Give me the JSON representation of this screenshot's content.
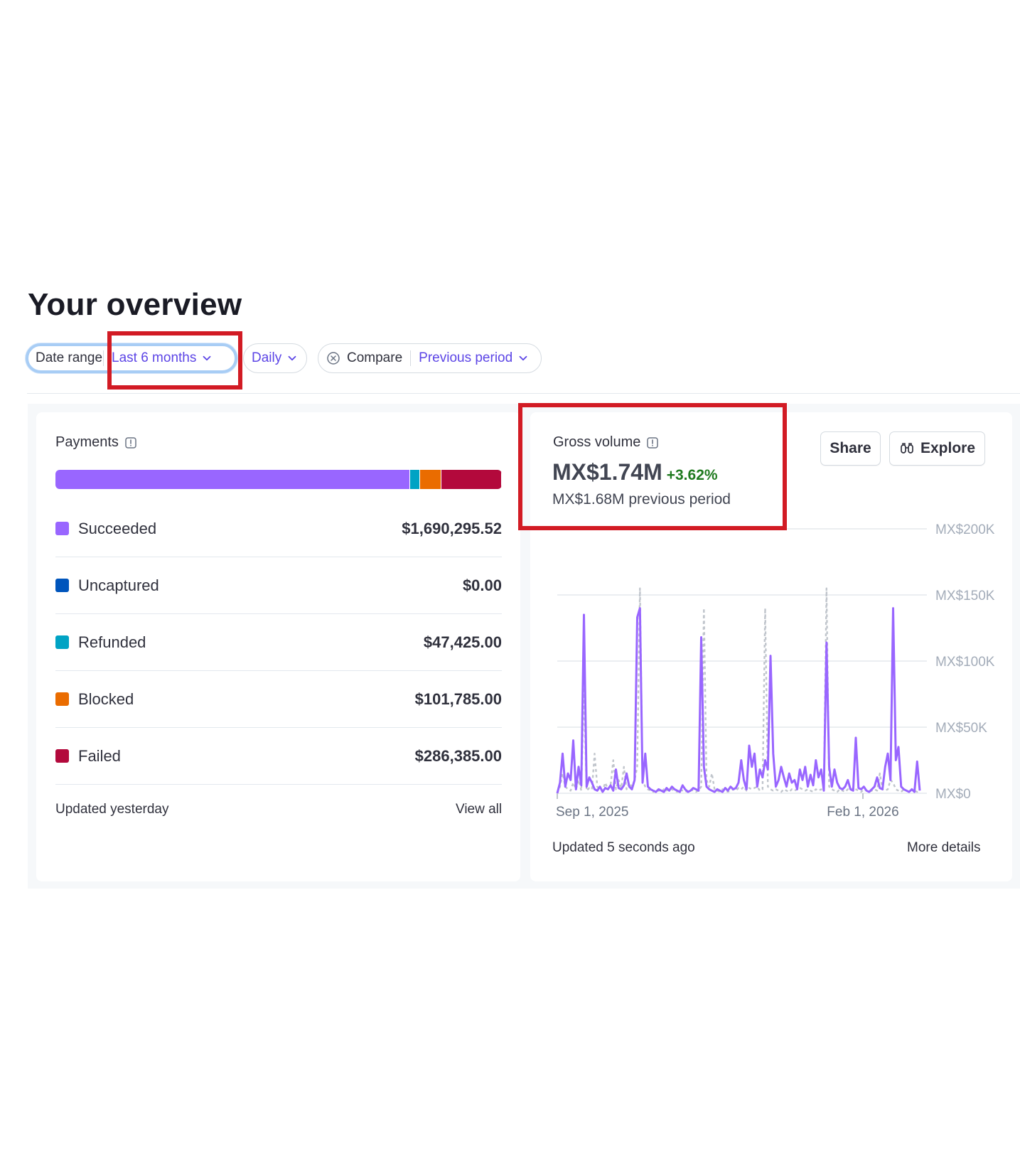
{
  "page": {
    "title": "Your overview"
  },
  "filters": {
    "date_range_label": "Date range",
    "date_range_value": "Last 6 months",
    "interval_value": "Daily",
    "compare_label": "Compare",
    "compare_value": "Previous period"
  },
  "payments": {
    "title": "Payments",
    "items": [
      {
        "label": "Succeeded",
        "value": "$1,690,295.52",
        "color": "#9966ff",
        "amount": 1690295.52
      },
      {
        "label": "Uncaptured",
        "value": "$0.00",
        "color": "#0055bc",
        "amount": 0
      },
      {
        "label": "Refunded",
        "value": "$47,425.00",
        "color": "#00a3c4",
        "amount": 47425
      },
      {
        "label": "Blocked",
        "value": "$101,785.00",
        "color": "#ea6c00",
        "amount": 101785
      },
      {
        "label": "Failed",
        "value": "$286,385.00",
        "color": "#b3093c",
        "amount": 286385
      }
    ],
    "updated": "Updated yesterday",
    "view_all": "View all"
  },
  "gross_volume": {
    "title": "Gross volume",
    "value": "MX$1.74M",
    "change": "+3.62%",
    "previous": "MX$1.68M previous period",
    "share_label": "Share",
    "explore_label": "Explore",
    "updated": "Updated 5 seconds ago",
    "more_details": "More details"
  },
  "colors": {
    "accent": "#5c45e6",
    "positive": "#1f7a1f",
    "highlight": "#d21b24",
    "series_current": "#9966ff",
    "series_previous": "#c0c5cc"
  },
  "chart_data": {
    "type": "line",
    "x_ticks": [
      "Sep 1, 2025",
      "Feb 1, 2026"
    ],
    "y_ticks": [
      "MX$0",
      "MX$50K",
      "MX$100K",
      "MX$150K",
      "MX$200K"
    ],
    "ylim": [
      0,
      200000
    ],
    "series": [
      {
        "values": [
          0,
          8000,
          30000,
          5000,
          15000,
          10000,
          40000,
          3000,
          20000,
          6000,
          135000,
          5000,
          12000,
          8000,
          3000,
          2000,
          5000,
          1000,
          4000,
          3000,
          6000,
          2000,
          18000,
          4000,
          3000,
          6000,
          15000,
          5000,
          3000,
          10000,
          133000,
          140000,
          8000,
          30000,
          5000,
          3000,
          2000,
          1000,
          3000,
          2000,
          1000,
          4000,
          2000,
          5000,
          3000,
          2000,
          1000,
          6000,
          3000,
          1000,
          2000,
          4000,
          3000,
          2000,
          118000,
          20000,
          5000,
          3000,
          2000,
          1000,
          3000,
          2000,
          1000,
          4000,
          2000,
          5000,
          3000,
          4000,
          8000,
          25000,
          10000,
          3000,
          36000,
          20000,
          30000,
          5000,
          18000,
          12000,
          25000,
          18000,
          104000,
          30000,
          5000,
          10000,
          20000,
          12000,
          5000,
          15000,
          8000,
          10000,
          3000,
          18000,
          10000,
          20000,
          5000,
          14000,
          6000,
          25000,
          12000,
          18000,
          2000,
          114000,
          20000,
          5000,
          18000,
          8000,
          4000,
          3000,
          5000,
          10000,
          3000,
          2000,
          42000,
          4000,
          3000,
          5000,
          2000,
          1000,
          3000,
          5000,
          12000,
          4000,
          3000,
          20000,
          30000,
          10000,
          140000,
          25000,
          35000,
          5000,
          3000,
          2000,
          1000,
          3000,
          1000,
          24000,
          2000
        ]
      },
      {
        "values": [
          0,
          5000,
          15000,
          5000,
          3000,
          2000,
          8000,
          3000,
          10000,
          2000,
          80000,
          2000,
          4000,
          3000,
          30000,
          5000,
          3000,
          2000,
          8000,
          3000,
          6000,
          25000,
          3000,
          10000,
          4000,
          20000,
          3000,
          8000,
          5000,
          10000,
          20000,
          155000,
          10000,
          5000,
          3000,
          2000,
          1000,
          3000,
          2000,
          1000,
          3000,
          2000,
          4000,
          3000,
          2000,
          1000,
          3000,
          2000,
          1000,
          2000,
          3000,
          2000,
          1000,
          2000,
          5000,
          140000,
          10000,
          5000,
          15000,
          3000,
          2000,
          1000,
          3000,
          2000,
          1000,
          2000,
          3000,
          2000,
          4000,
          3000,
          5000,
          2000,
          4000,
          3000,
          4000,
          5000,
          2000,
          3000,
          140000,
          5000,
          3000,
          2000,
          3000,
          2000,
          1000,
          3000,
          2000,
          1000,
          3000,
          2000,
          3000,
          4000,
          3000,
          2000,
          3000,
          2000,
          1000,
          3000,
          2000,
          3000,
          2000,
          155000,
          5000,
          3000,
          2000,
          1000,
          3000,
          2000,
          1000,
          3000,
          2000,
          4000,
          3000,
          2000,
          1000,
          3000,
          2000,
          1000,
          2000,
          3000,
          2000,
          15000,
          3000,
          2000,
          3000,
          10000,
          8000,
          3000,
          2000,
          1000,
          3000,
          2000,
          1000,
          3000,
          2000,
          1000,
          2000
        ]
      }
    ]
  }
}
